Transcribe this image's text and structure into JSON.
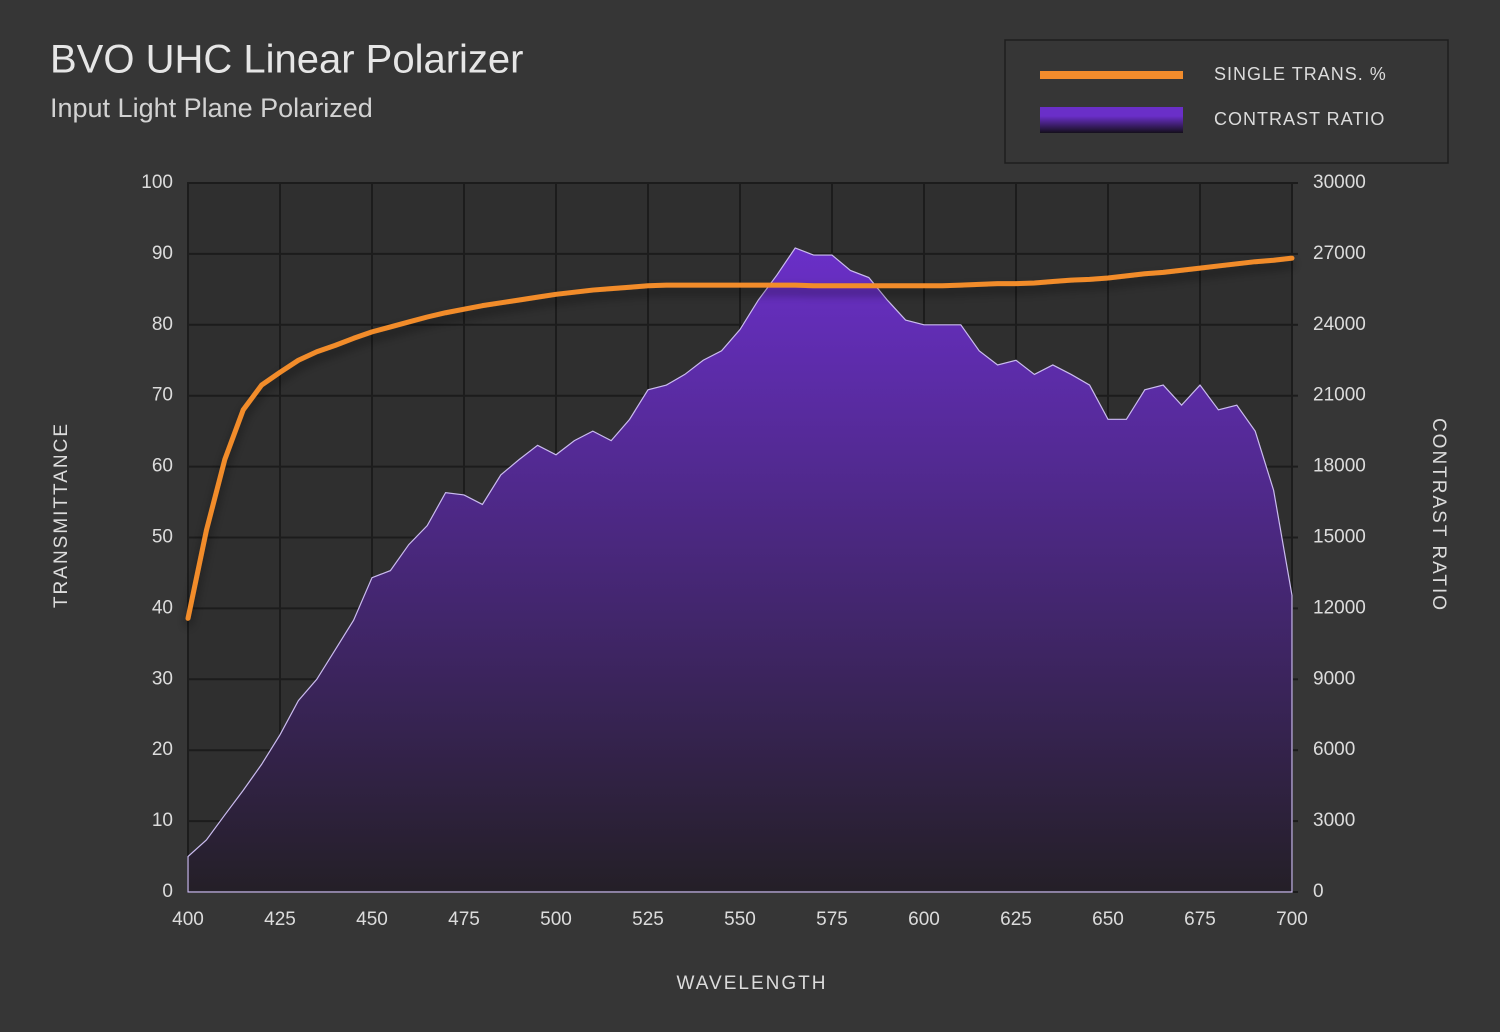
{
  "chart_data": {
    "type": "line",
    "title": "BVO UHC Linear Polarizer",
    "subtitle": "Input Light Plane Polarized",
    "xlabel": "WAVELENGTH",
    "ylabel": "TRANSMITTANCE",
    "y2label": "CONTRAST RATIO",
    "x": [
      400,
      405,
      410,
      415,
      420,
      425,
      430,
      435,
      440,
      445,
      450,
      455,
      460,
      465,
      470,
      475,
      480,
      485,
      490,
      495,
      500,
      505,
      510,
      515,
      520,
      525,
      530,
      535,
      540,
      545,
      550,
      555,
      560,
      565,
      570,
      575,
      580,
      585,
      590,
      595,
      600,
      605,
      610,
      615,
      620,
      625,
      630,
      635,
      640,
      645,
      650,
      655,
      660,
      665,
      670,
      675,
      680,
      685,
      690,
      695,
      700
    ],
    "series": [
      {
        "name": "SINGLE TRANS. %",
        "color": "#f28c2c",
        "type": "line",
        "values": [
          38.6,
          51,
          61,
          68,
          71.5,
          73.3,
          75,
          76.2,
          77.1,
          78.1,
          79,
          79.7,
          80.4,
          81.1,
          81.7,
          82.2,
          82.7,
          83.1,
          83.5,
          83.9,
          84.3,
          84.6,
          84.9,
          85.1,
          85.3,
          85.5,
          85.6,
          85.6,
          85.6,
          85.6,
          85.6,
          85.6,
          85.6,
          85.6,
          85.5,
          85.5,
          85.5,
          85.5,
          85.5,
          85.5,
          85.5,
          85.5,
          85.6,
          85.7,
          85.8,
          85.8,
          85.9,
          86.1,
          86.3,
          86.4,
          86.6,
          86.9,
          87.2,
          87.4,
          87.7,
          88,
          88.3,
          88.6,
          88.9,
          89.1,
          89.4
        ]
      },
      {
        "name": "CONTRAST RATIO",
        "color": "#6a2fc8",
        "type": "area",
        "axis": "y2",
        "values": [
          1500,
          2200,
          3260,
          4300,
          5400,
          6650,
          8100,
          9000,
          10250,
          11500,
          13300,
          13600,
          14700,
          15500,
          16900,
          16800,
          16400,
          17650,
          18300,
          18900,
          18500,
          19100,
          19500,
          19100,
          20000,
          21250,
          21450,
          21900,
          22500,
          22900,
          23800,
          25050,
          26100,
          27250,
          26950,
          26950,
          26300,
          26000,
          25050,
          24200,
          24000,
          24000,
          24000,
          22900,
          22300,
          22500,
          21900,
          22300,
          21900,
          21450,
          20000,
          20000,
          21250,
          21450,
          20600,
          21450,
          20400,
          20600,
          19500,
          17000,
          12550
        ]
      }
    ],
    "xlim": [
      400,
      700
    ],
    "xticks": [
      400,
      425,
      450,
      475,
      500,
      525,
      550,
      575,
      600,
      625,
      650,
      675,
      700
    ],
    "ylim": [
      0,
      100
    ],
    "yticks": [
      0,
      10,
      20,
      30,
      40,
      50,
      60,
      70,
      80,
      90,
      100
    ],
    "y2lim": [
      0,
      30000
    ],
    "y2ticks": [
      0,
      3000,
      6000,
      9000,
      12000,
      15000,
      18000,
      21000,
      24000,
      27000,
      30000
    ],
    "grid": true,
    "legend": "top-right"
  }
}
